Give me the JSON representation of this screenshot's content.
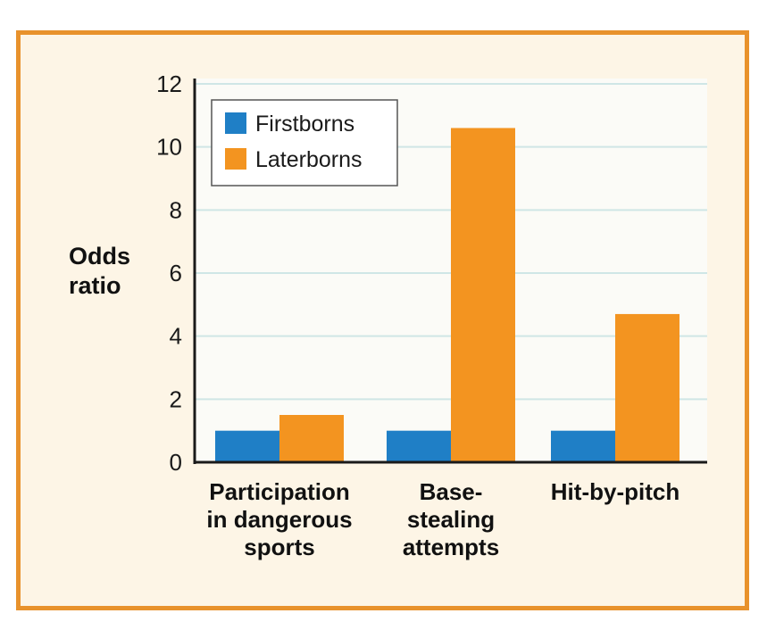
{
  "chart_data": {
    "type": "bar",
    "title": "",
    "ylabel": [
      "Odds",
      "ratio"
    ],
    "xlabel": "",
    "ylim": [
      0,
      12
    ],
    "yticks": [
      0,
      2,
      4,
      6,
      8,
      10,
      12
    ],
    "categories": [
      [
        "Participation",
        "in dangerous",
        "sports"
      ],
      [
        "Base-",
        "stealing",
        "attempts"
      ],
      [
        "Hit-by-pitch"
      ]
    ],
    "series": [
      {
        "name": "Firstborns",
        "color": "#1f7fc6",
        "values": [
          1,
          1,
          1
        ]
      },
      {
        "name": "Laterborns",
        "color": "#f39420",
        "values": [
          1.5,
          10.6,
          4.7
        ]
      }
    ],
    "legend_position": "top-left",
    "grid": true
  },
  "colors": {
    "frame_border": "#e8922c",
    "frame_bg": "#fdf5e6",
    "plot_bg": "#fbfbf7",
    "grid": "#cfe6e6"
  }
}
